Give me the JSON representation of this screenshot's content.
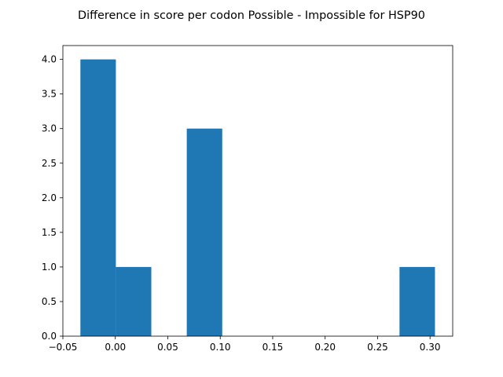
{
  "chart_data": {
    "type": "bar",
    "title": "Difference in score per codon Possible - Impossible for HSP90",
    "xlabel": "",
    "ylabel": "",
    "bins": [
      {
        "start": -0.0333,
        "end": 0.0005,
        "count": 4
      },
      {
        "start": 0.0005,
        "end": 0.0343,
        "count": 1
      },
      {
        "start": 0.0343,
        "end": 0.0681,
        "count": 0
      },
      {
        "start": 0.0681,
        "end": 0.1019,
        "count": 3
      },
      {
        "start": 0.1019,
        "end": 0.1357,
        "count": 0
      },
      {
        "start": 0.1357,
        "end": 0.1695,
        "count": 0
      },
      {
        "start": 0.1695,
        "end": 0.2033,
        "count": 0
      },
      {
        "start": 0.2033,
        "end": 0.2371,
        "count": 0
      },
      {
        "start": 0.2371,
        "end": 0.2709,
        "count": 0
      },
      {
        "start": 0.2709,
        "end": 0.3047,
        "count": 1
      }
    ],
    "xlim": [
      -0.05,
      0.3216
    ],
    "ylim": [
      0,
      4.2
    ],
    "xticks": [
      {
        "value": -0.05,
        "label": "−0.05"
      },
      {
        "value": 0.0,
        "label": "0.00"
      },
      {
        "value": 0.05,
        "label": "0.05"
      },
      {
        "value": 0.1,
        "label": "0.10"
      },
      {
        "value": 0.15,
        "label": "0.15"
      },
      {
        "value": 0.2,
        "label": "0.20"
      },
      {
        "value": 0.25,
        "label": "0.25"
      },
      {
        "value": 0.3,
        "label": "0.30"
      }
    ],
    "yticks": [
      {
        "value": 0.0,
        "label": "0.0"
      },
      {
        "value": 0.5,
        "label": "0.5"
      },
      {
        "value": 1.0,
        "label": "1.0"
      },
      {
        "value": 1.5,
        "label": "1.5"
      },
      {
        "value": 2.0,
        "label": "2.0"
      },
      {
        "value": 2.5,
        "label": "2.5"
      },
      {
        "value": 3.0,
        "label": "3.0"
      },
      {
        "value": 3.5,
        "label": "3.5"
      },
      {
        "value": 4.0,
        "label": "4.0"
      }
    ],
    "bar_color": "#1f77b4",
    "grid": false,
    "legend": "none"
  }
}
